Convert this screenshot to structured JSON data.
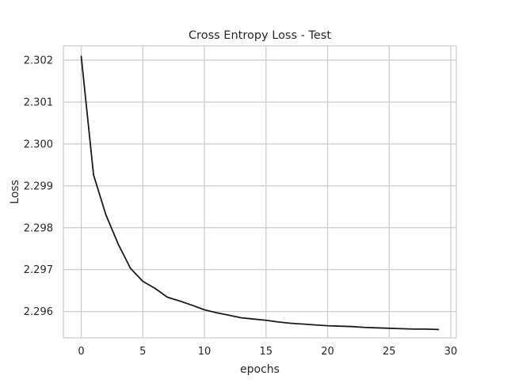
{
  "chart_data": {
    "type": "line",
    "title": "Cross Entropy Loss - Test",
    "xlabel": "epochs",
    "ylabel": "Loss",
    "xlim": [
      -1.45,
      30.45
    ],
    "ylim": [
      2.29537,
      2.30234
    ],
    "xticks": [
      0,
      5,
      10,
      15,
      20,
      25,
      30
    ],
    "xtick_labels": [
      "0",
      "5",
      "10",
      "15",
      "20",
      "25",
      "30"
    ],
    "yticks": [
      2.296,
      2.297,
      2.298,
      2.299,
      2.3,
      2.301,
      2.302
    ],
    "ytick_labels": [
      "2.296",
      "2.297",
      "2.298",
      "2.299",
      "2.300",
      "2.301",
      "2.302"
    ],
    "grid": true,
    "legend": "none",
    "series": [
      {
        "color": "#1a1a1a",
        "x": [
          0,
          1,
          2,
          3,
          4,
          5,
          6,
          7,
          8,
          9,
          10,
          11,
          12,
          13,
          14,
          15,
          16,
          17,
          18,
          19,
          20,
          21,
          22,
          23,
          24,
          25,
          26,
          27,
          28,
          29
        ],
        "values": [
          2.30209,
          2.29926,
          2.29831,
          2.29761,
          2.29703,
          2.29672,
          2.29655,
          2.29634,
          2.29625,
          2.29615,
          2.29604,
          2.29597,
          2.29591,
          2.29585,
          2.29582,
          2.29579,
          2.29575,
          2.29572,
          2.2957,
          2.29568,
          2.29566,
          2.29565,
          2.29564,
          2.29562,
          2.29561,
          2.2956,
          2.29559,
          2.29558,
          2.29558,
          2.29557
        ]
      }
    ]
  }
}
